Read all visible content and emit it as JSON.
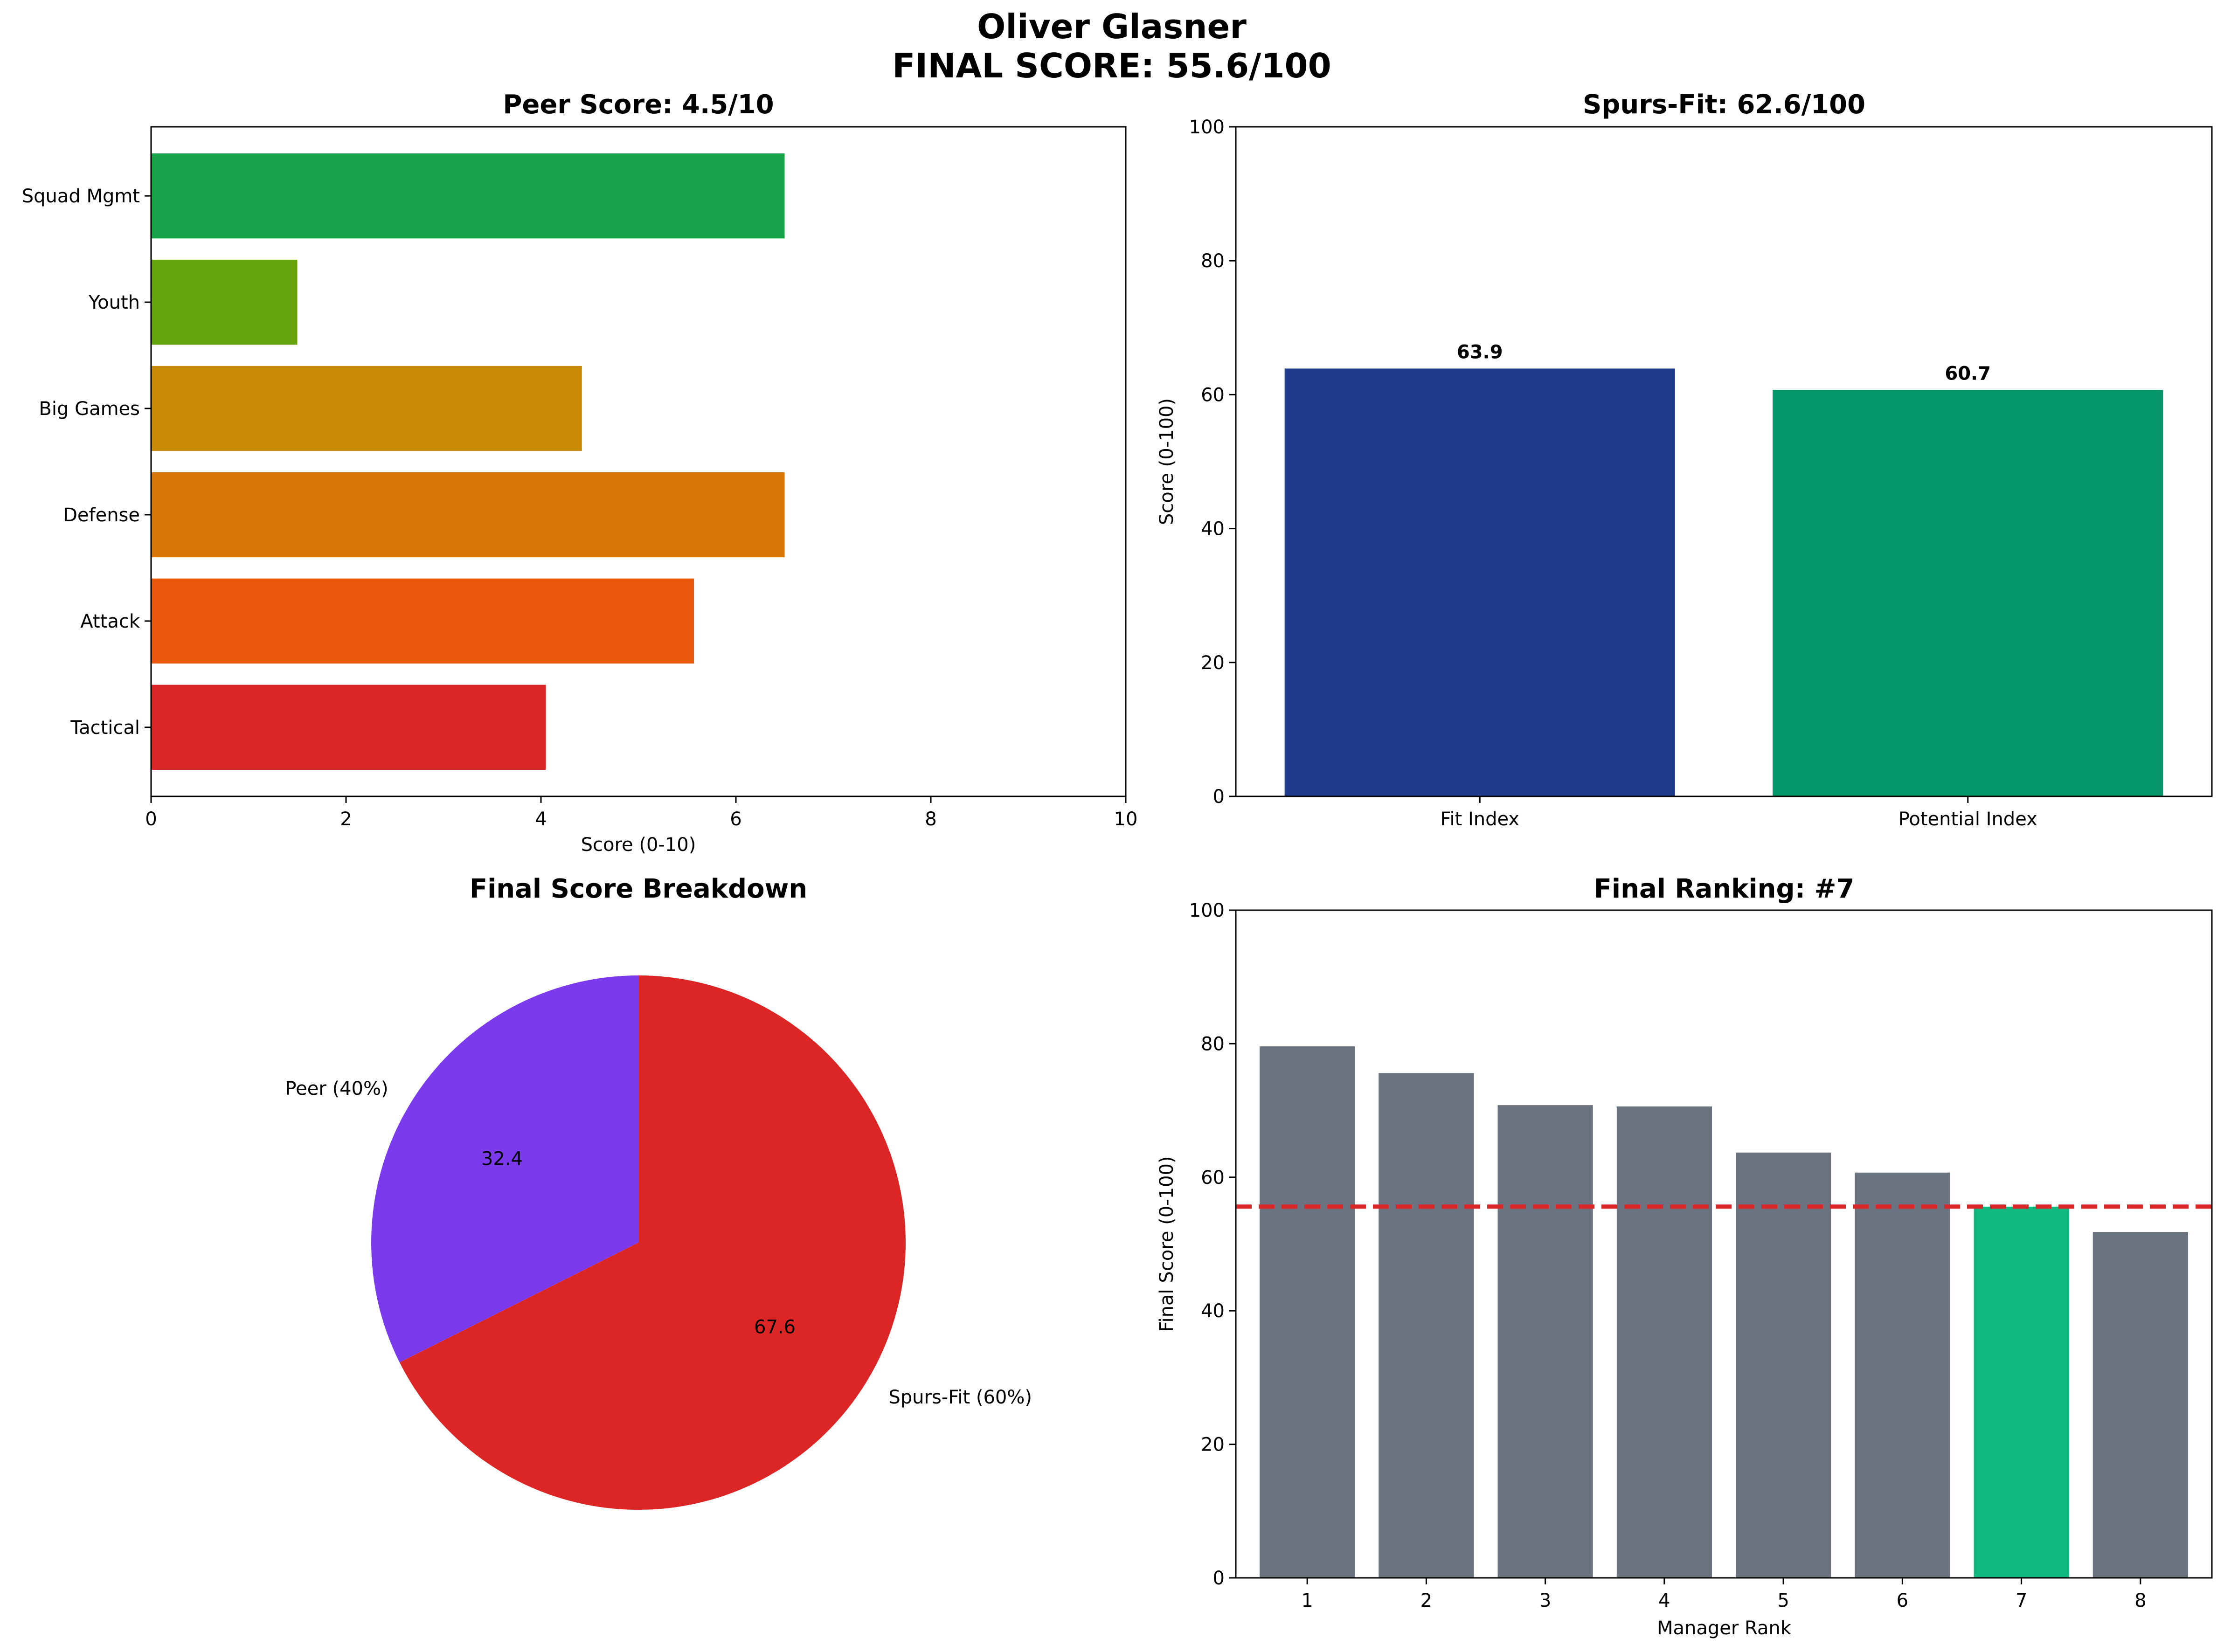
{
  "figure": {
    "title_line1": "Oliver Glasner",
    "title_line2": "FINAL SCORE: 55.6/100"
  },
  "chart_data": [
    {
      "type": "bar",
      "orientation": "horizontal",
      "title": "Peer Score: 4.5/10",
      "xlabel": "Score (0-10)",
      "ylabel": "",
      "categories": [
        "Tactical",
        "Attack",
        "Defense",
        "Big Games",
        "Youth",
        "Squad Mgmt"
      ],
      "values": [
        4.05,
        5.57,
        6.5,
        4.42,
        1.5,
        6.5
      ],
      "colors": [
        "#dc2626",
        "#ea580c",
        "#d97706",
        "#ca8a04",
        "#65a30d",
        "#16a34a"
      ],
      "xlim": [
        0,
        10
      ],
      "xticks": [
        "0",
        "2",
        "4",
        "6",
        "8",
        "10"
      ],
      "grid": false
    },
    {
      "type": "bar",
      "title": "Spurs-Fit: 62.6/100",
      "xlabel": "",
      "ylabel": "Score (0-100)",
      "categories": [
        "Fit Index",
        "Potential Index"
      ],
      "values": [
        63.9,
        60.7
      ],
      "data_labels": [
        "63.9",
        "60.7"
      ],
      "colors": [
        "#1e3a8a",
        "#059669"
      ],
      "ylim": [
        0,
        100
      ],
      "yticks": [
        "0",
        "20",
        "40",
        "60",
        "80",
        "100"
      ],
      "grid": false
    },
    {
      "type": "pie",
      "title": "Final Score Breakdown",
      "labels": [
        "Peer (40%)",
        "Spurs-Fit (60%)"
      ],
      "values": [
        32.4,
        67.6
      ],
      "value_labels": [
        "32.4",
        "67.6"
      ],
      "colors": [
        "#7c3aed",
        "#dc2626"
      ],
      "start_angle_deg": 90,
      "direction": "counterclockwise"
    },
    {
      "type": "bar",
      "title": "Final Ranking: #7",
      "xlabel": "Manager Rank",
      "ylabel": "Final Score (0-100)",
      "categories": [
        "1",
        "2",
        "3",
        "4",
        "5",
        "6",
        "7",
        "8"
      ],
      "values": [
        79.6,
        75.6,
        70.8,
        70.6,
        63.7,
        60.7,
        55.6,
        51.8
      ],
      "highlight_index": 6,
      "bar_color": "#6b7280",
      "highlight_color": "#10b981",
      "reference_line": {
        "value": 55.6,
        "color": "#dc2626",
        "style": "dashed"
      },
      "ylim": [
        0,
        100
      ],
      "yticks": [
        "0",
        "20",
        "40",
        "60",
        "80",
        "100"
      ],
      "grid": false
    }
  ]
}
